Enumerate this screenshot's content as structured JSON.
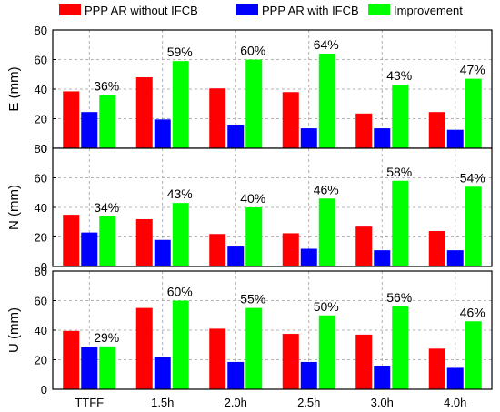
{
  "chart_data": {
    "type": "bar",
    "categories": [
      "TTFF",
      "1.5h",
      "2.0h",
      "2.5h",
      "3.0h",
      "4.0h"
    ],
    "legend": {
      "placement": "top",
      "entries": [
        "PPP AR without IFCB",
        "PPP AR with IFCB",
        "Improvement"
      ]
    },
    "colors": [
      "#ff0000",
      "#0000ff",
      "#00ff00"
    ],
    "grid": true,
    "panels": [
      {
        "ylabel": "E (mm)",
        "ylim": [
          0,
          80
        ],
        "yticks": [
          "0",
          "20",
          "40",
          "60",
          "80"
        ],
        "series": [
          {
            "name": "PPP AR without IFCB",
            "values": [
              38.5,
              48,
              40.5,
              38,
              23.5,
              24.5
            ]
          },
          {
            "name": "PPP AR with IFCB",
            "values": [
              24.5,
              19.5,
              16,
              13.5,
              13.5,
              12.5
            ]
          },
          {
            "name": "Improvement",
            "values": [
              36,
              59,
              60,
              64,
              43,
              47
            ]
          }
        ],
        "labels": [
          "36%",
          "59%",
          "60%",
          "64%",
          "43%",
          "47%"
        ]
      },
      {
        "ylabel": "N (mm)",
        "ylim": [
          0,
          80
        ],
        "yticks": [
          "0",
          "20",
          "40",
          "60",
          "80"
        ],
        "series": [
          {
            "name": "PPP AR without IFCB",
            "values": [
              35,
              32,
              22,
              22.5,
              27,
              24
            ]
          },
          {
            "name": "PPP AR with IFCB",
            "values": [
              23,
              18,
              13.5,
              12,
              11,
              11
            ]
          },
          {
            "name": "Improvement",
            "values": [
              34,
              43,
              40,
              46,
              58,
              54
            ]
          }
        ],
        "labels": [
          "34%",
          "43%",
          "40%",
          "46%",
          "58%",
          "54%"
        ]
      },
      {
        "ylabel": "U (mm)",
        "ylim": [
          0,
          80
        ],
        "yticks": [
          "0",
          "20",
          "40",
          "60",
          "80"
        ],
        "series": [
          {
            "name": "PPP AR without IFCB",
            "values": [
              39.5,
              55,
              41,
              37.5,
              37,
              27.5
            ]
          },
          {
            "name": "PPP AR with IFCB",
            "values": [
              28.5,
              22,
              18.5,
              18.5,
              16,
              14.5
            ]
          },
          {
            "name": "Improvement",
            "values": [
              29,
              60,
              55,
              50,
              56,
              46
            ]
          }
        ],
        "labels": [
          "29%",
          "60%",
          "55%",
          "50%",
          "56%",
          "46%"
        ]
      }
    ]
  }
}
